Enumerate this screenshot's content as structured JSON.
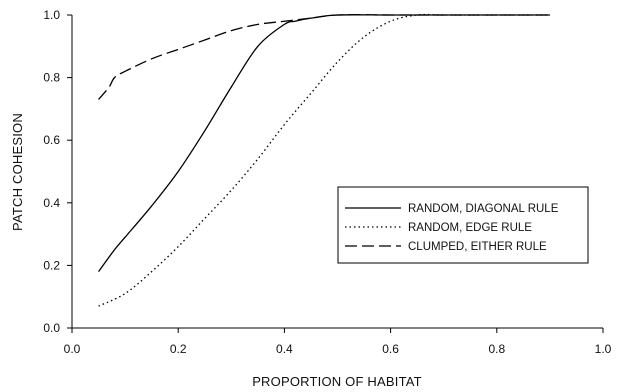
{
  "chart_data": {
    "type": "line",
    "title": "",
    "xlabel": "PROPORTION OF HABITAT",
    "ylabel": "PATCH COHESION",
    "xlim": [
      0.0,
      1.0
    ],
    "ylim": [
      0.0,
      1.0
    ],
    "xticks": [
      0.0,
      0.2,
      0.4,
      0.6,
      0.8,
      1.0
    ],
    "yticks": [
      0.0,
      0.2,
      0.4,
      0.6,
      0.8,
      1.0
    ],
    "xtick_labels": [
      "0.0",
      "0.2",
      "0.4",
      "0.6",
      "0.8",
      "1.0"
    ],
    "ytick_labels": [
      "0.0",
      "0.2",
      "0.4",
      "0.6",
      "0.8",
      "1.0"
    ],
    "grid": false,
    "legend_position": "right",
    "series": [
      {
        "name": "RANDOM, DIAGONAL RULE",
        "style": "solid",
        "color": "#000000",
        "x": [
          0.05,
          0.08,
          0.1,
          0.15,
          0.2,
          0.25,
          0.3,
          0.35,
          0.4,
          0.42,
          0.45,
          0.5,
          0.6,
          0.7,
          0.8,
          0.9
        ],
        "y": [
          0.18,
          0.25,
          0.29,
          0.39,
          0.5,
          0.63,
          0.77,
          0.9,
          0.97,
          0.98,
          0.99,
          1.0,
          1.0,
          1.0,
          1.0,
          1.0
        ]
      },
      {
        "name": "RANDOM, EDGE RULE",
        "style": "dotted",
        "color": "#000000",
        "x": [
          0.05,
          0.1,
          0.15,
          0.2,
          0.25,
          0.3,
          0.35,
          0.4,
          0.45,
          0.5,
          0.55,
          0.6,
          0.65,
          0.7,
          0.8,
          0.9
        ],
        "y": [
          0.07,
          0.11,
          0.18,
          0.26,
          0.35,
          0.44,
          0.54,
          0.65,
          0.75,
          0.85,
          0.93,
          0.98,
          1.0,
          1.0,
          1.0,
          1.0
        ]
      },
      {
        "name": "CLUMPED, EITHER RULE",
        "style": "dashed",
        "color": "#000000",
        "x": [
          0.05,
          0.07,
          0.08,
          0.1,
          0.15,
          0.2,
          0.25,
          0.3,
          0.35,
          0.4,
          0.45,
          0.5,
          0.6,
          0.7,
          0.8,
          0.9
        ],
        "y": [
          0.73,
          0.77,
          0.8,
          0.82,
          0.86,
          0.89,
          0.92,
          0.95,
          0.97,
          0.98,
          0.99,
          1.0,
          1.0,
          1.0,
          1.0,
          1.0
        ]
      }
    ]
  }
}
